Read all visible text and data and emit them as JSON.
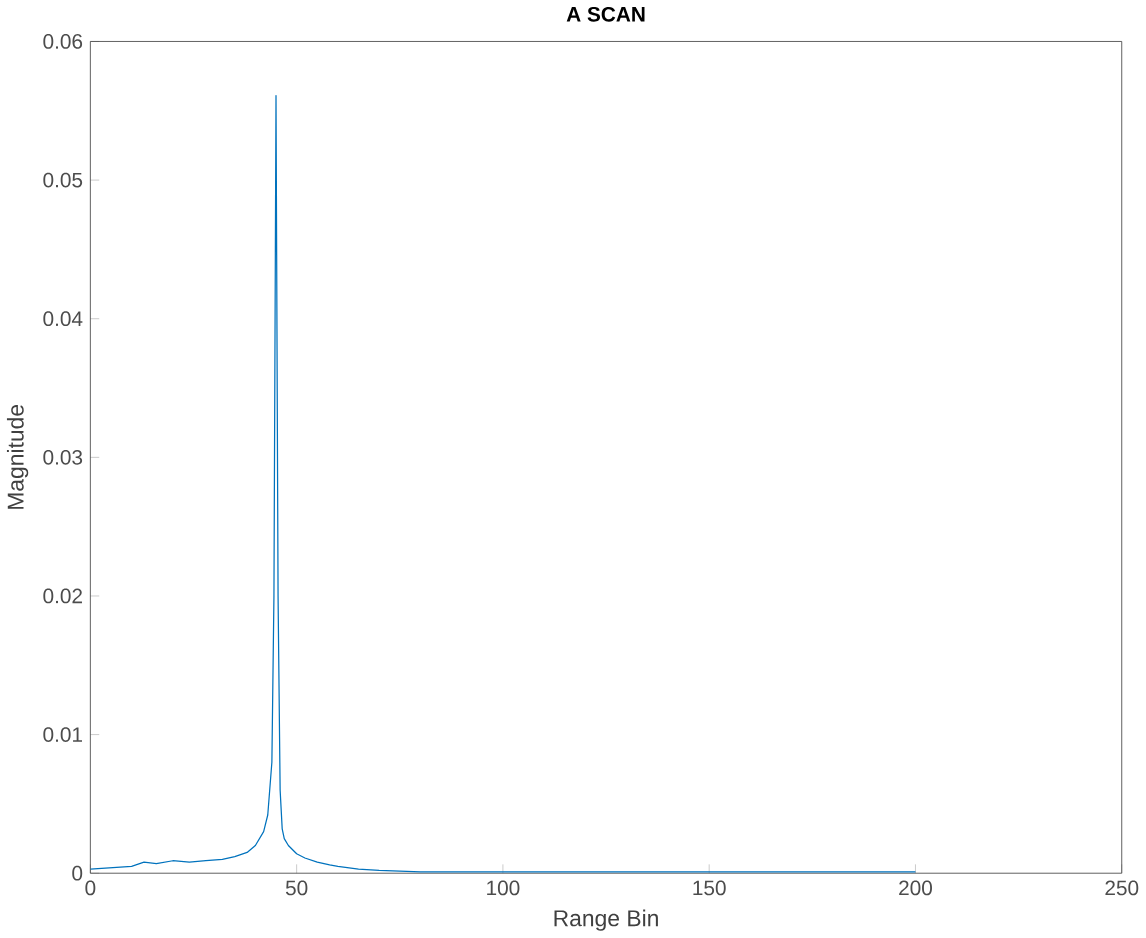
{
  "chart_data": {
    "type": "line",
    "title": "A SCAN",
    "xlabel": "Range Bin",
    "ylabel": "Magnitude",
    "x": [
      0,
      5,
      10,
      13,
      16,
      20,
      24,
      28,
      32,
      35,
      38,
      40,
      42,
      43,
      44,
      44.5,
      45,
      45.5,
      46,
      46.5,
      47,
      48,
      50,
      52,
      55,
      58,
      60,
      65,
      70,
      80,
      100,
      120,
      150,
      180,
      200
    ],
    "series": [
      {
        "color": "#0072bd",
        "values": [
          0.0003,
          0.0004,
          0.0005,
          0.0008,
          0.0007,
          0.0009,
          0.0008,
          0.0009,
          0.001,
          0.0012,
          0.0015,
          0.002,
          0.003,
          0.0042,
          0.008,
          0.02,
          0.0561,
          0.02,
          0.006,
          0.0032,
          0.0025,
          0.002,
          0.0014,
          0.0011,
          0.0008,
          0.0006,
          0.0005,
          0.0003,
          0.0002,
          0.0001,
          0.0001,
          0.0001,
          0.0001,
          0.0001,
          0.0001
        ]
      }
    ],
    "xlim": [
      0,
      250
    ],
    "ylim": [
      0,
      0.06
    ],
    "xticks": [
      0,
      50,
      100,
      150,
      200,
      250
    ],
    "yticks": [
      0,
      0.01,
      0.02,
      0.03,
      0.04,
      0.05,
      0.06
    ],
    "grid": false
  }
}
